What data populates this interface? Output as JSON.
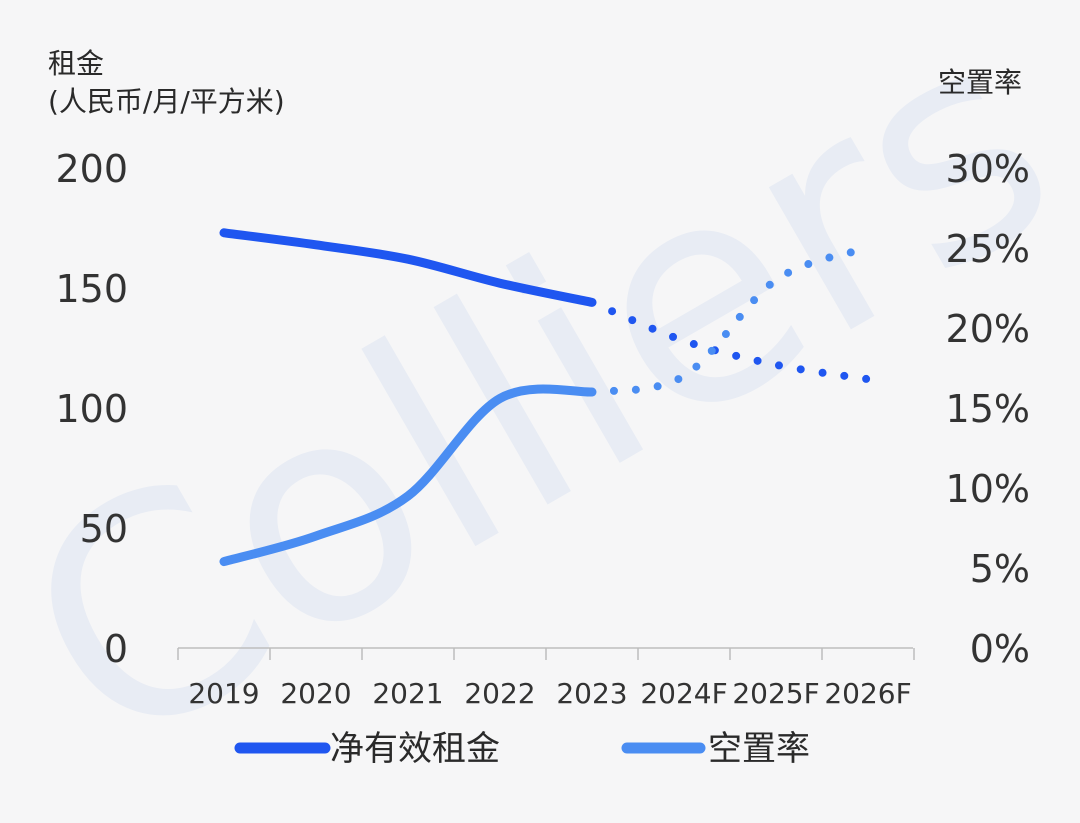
{
  "chart_data": {
    "type": "line",
    "title": "",
    "watermark": "Colliers",
    "categories": [
      "2019",
      "2020",
      "2021",
      "2022",
      "2023",
      "2024F",
      "2025F",
      "2026F"
    ],
    "left_axis": {
      "label_line1": "租金",
      "label_line2": "(人民币/月/平方米)",
      "ticks": [
        "200",
        "150",
        "100",
        "50",
        "0"
      ],
      "range": [
        0,
        200
      ]
    },
    "right_axis": {
      "label": "空置率",
      "ticks": [
        "30%",
        "25%",
        "20%",
        "15%",
        "10%",
        "5%",
        "0%"
      ],
      "range": [
        0,
        30
      ]
    },
    "forecast_start_index": 4,
    "series": [
      {
        "name": "净有效租金",
        "axis": "left",
        "color": "#1f56f0",
        "values": [
          173,
          168,
          162,
          152,
          144,
          128,
          118,
          112
        ]
      },
      {
        "name": "空置率",
        "axis": "right",
        "color": "#4a8df2",
        "values": [
          5.4,
          7.0,
          9.5,
          15.6,
          16.0,
          17.0,
          23.0,
          25.0
        ]
      }
    ],
    "grid": false,
    "legend_position": "bottom"
  }
}
